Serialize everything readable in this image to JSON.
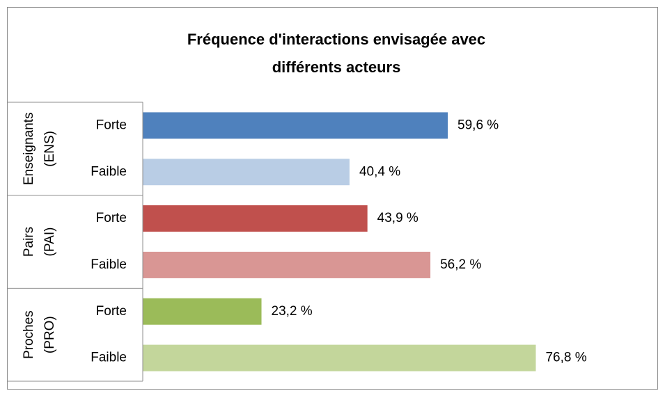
{
  "chart_data": {
    "type": "bar",
    "orientation": "horizontal",
    "title": [
      "Fréquence d'interactions envisagée avec",
      "différents acteurs"
    ],
    "groups": [
      {
        "name": [
          "Enseignants",
          "(ENS)"
        ],
        "size": 2
      },
      {
        "name": [
          "Pairs",
          "(PAI)"
        ],
        "size": 2
      },
      {
        "name": [
          "Proches",
          "(PRO)"
        ],
        "size": 2
      }
    ],
    "categories": [
      "Forte",
      "Faible",
      "Forte",
      "Faible",
      "Forte",
      "Faible"
    ],
    "values": [
      59.6,
      40.4,
      43.9,
      56.2,
      23.2,
      76.8
    ],
    "value_labels": [
      "59,6 %",
      "40,4 %",
      "43,9 %",
      "56,2 %",
      "23,2 %",
      "76,8 %"
    ],
    "colors": [
      "#4f81bd",
      "#b9cde5",
      "#c0504d",
      "#d99694",
      "#9bbb59",
      "#c3d69b"
    ]
  }
}
